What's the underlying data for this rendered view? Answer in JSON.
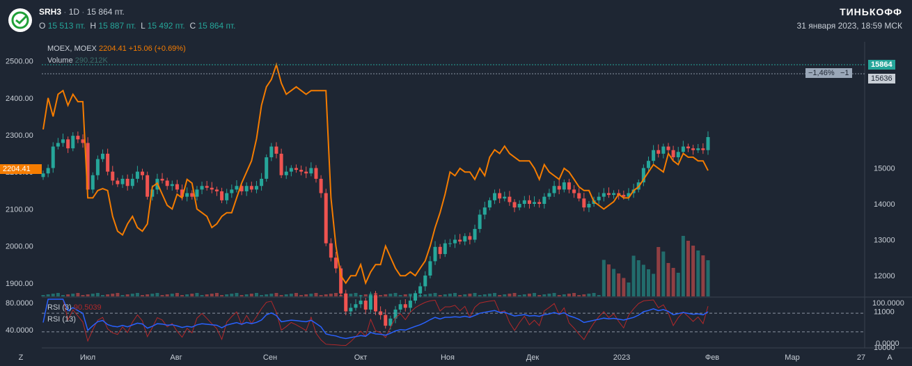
{
  "header": {
    "symbol": "SRH3",
    "sep": "·",
    "interval": "1D",
    "price": "15 864 пт.",
    "o_label": "O",
    "o_value": "15 513 пт.",
    "h_label": "H",
    "h_value": "15 887 пт.",
    "l_label": "L",
    "l_value": "15 492 пт.",
    "c_label": "C",
    "c_value": "15 864 пт.",
    "brand": "ТИНЬКОФФ",
    "datetime": "31 января 2023, 18:59 МСК"
  },
  "legend": {
    "compare_name": "MOEX, MOEX",
    "compare_value": "2204.41",
    "compare_change": "+15.06 (+0.69%)",
    "volume_label": "Volume",
    "volume_value": "290.212K",
    "rsi3_label": "RSI (3)",
    "rsi3_value": "90.5039",
    "rsi13_label": "RSI (13)"
  },
  "tags": {
    "price_tag": "15864",
    "ref_tag": "15636",
    "measure_pct": "−1,46%",
    "measure_n": "−1",
    "moex_tag": "2204.41"
  },
  "colors": {
    "up": "#26a69a",
    "down": "#ef5350",
    "moex": "#f57c00",
    "rsi3": "#b2282a",
    "rsi13": "#2962ff"
  },
  "chart_data": {
    "type": "candlestick",
    "x_labels": [
      "Z",
      "Июл",
      "Авг",
      "Сен",
      "Окт",
      "Ноя",
      "Дек",
      "2023",
      "Фев",
      "Мар",
      "27",
      "A"
    ],
    "left_axis_ticks": [
      "2500.00",
      "2400.00",
      "2300.00",
      "2200.00",
      "2100.00",
      "2000.00",
      "1900.00"
    ],
    "right_axis_ticks": [
      "15000",
      "14000",
      "13000",
      "12000",
      "11000",
      "10000"
    ],
    "rsi_left_ticks": [
      "80.0000",
      "40.0000"
    ],
    "rsi_right_ticks": [
      "100.0000",
      "0.0000"
    ],
    "srh3_close": [
      14850,
      15000,
      15600,
      15700,
      15800,
      15550,
      15900,
      15800,
      15700,
      14400,
      14800,
      15250,
      15400,
      14900,
      14650,
      14550,
      14700,
      14500,
      14700,
      14900,
      14800,
      14200,
      14400,
      14700,
      14650,
      14500,
      14550,
      14400,
      14200,
      14300,
      14200,
      14400,
      14500,
      14450,
      14400,
      14350,
      14100,
      14300,
      14400,
      14500,
      14350,
      14500,
      14400,
      14500,
      14700,
      15300,
      15600,
      15400,
      14800,
      14900,
      15000,
      14950,
      14900,
      14850,
      15000,
      14700,
      14300,
      12900,
      12500,
      12200,
      11500,
      11000,
      11100,
      11200,
      11300,
      11050,
      11450,
      11000,
      10900,
      10600,
      10800,
      11050,
      11200,
      11100,
      11300,
      11500,
      11700,
      12000,
      12400,
      12800,
      12600,
      12900,
      12900,
      13000,
      12950,
      13100,
      13000,
      13300,
      13700,
      13900,
      14100,
      14300,
      14150,
      14200,
      14050,
      13900,
      14000,
      14100,
      14000,
      14050,
      14000,
      14200,
      14300,
      14500,
      14400,
      14600,
      14400,
      14300,
      14150,
      13900,
      14000,
      14100,
      14200,
      14300,
      14250,
      14300,
      14250,
      14200,
      14300,
      14400,
      14600,
      15000,
      15200,
      15500,
      15400,
      15600,
      15500,
      15300,
      15450,
      15600,
      15550,
      15500,
      15550,
      15500,
      15864
    ],
    "moex": [
      2315,
      2400,
      2350,
      2410,
      2420,
      2380,
      2410,
      2390,
      2390,
      2130,
      2130,
      2150,
      2155,
      2150,
      2080,
      2040,
      2030,
      2060,
      2080,
      2050,
      2040,
      2060,
      2160,
      2170,
      2140,
      2110,
      2100,
      2140,
      2130,
      2180,
      2170,
      2100,
      2090,
      2080,
      2050,
      2060,
      2080,
      2090,
      2090,
      2130,
      2170,
      2200,
      2230,
      2290,
      2380,
      2430,
      2450,
      2490,
      2440,
      2410,
      2420,
      2430,
      2420,
      2410,
      2420,
      2420,
      2420,
      2420,
      2130,
      2000,
      1920,
      1900,
      1920,
      1920,
      1950,
      1900,
      1930,
      1950,
      1950,
      2000,
      1970,
      1940,
      1920,
      1920,
      1930,
      1920,
      1940,
      1960,
      2000,
      2050,
      2090,
      2140,
      2200,
      2190,
      2210,
      2200,
      2200,
      2180,
      2210,
      2190,
      2240,
      2260,
      2250,
      2270,
      2250,
      2240,
      2230,
      2230,
      2230,
      2210,
      2180,
      2220,
      2200,
      2190,
      2180,
      2210,
      2200,
      2180,
      2160,
      2150,
      2150,
      2120,
      2110,
      2100,
      2110,
      2120,
      2140,
      2130,
      2130,
      2150,
      2160,
      2180,
      2200,
      2220,
      2210,
      2200,
      2250,
      2230,
      2220,
      2250,
      2240,
      2240,
      2230,
      2230,
      2204
    ]
  }
}
